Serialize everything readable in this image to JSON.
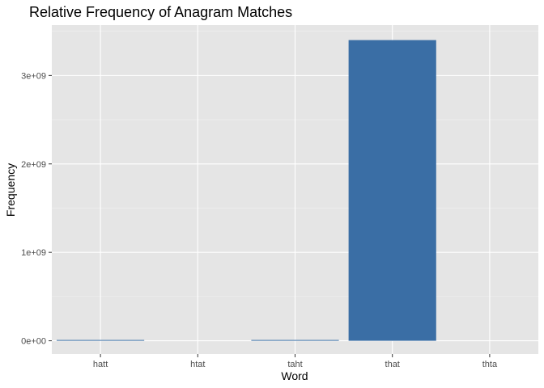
{
  "chart_data": {
    "type": "bar",
    "title": "Relative Frequency of Anagram Matches",
    "xlabel": "Word",
    "ylabel": "Frequency",
    "categories": [
      "hatt",
      "htat",
      "taht",
      "that",
      "thta"
    ],
    "values": [
      5000000,
      0,
      5000000,
      3400000000,
      0
    ],
    "ylim": [
      -150000000,
      3570000000
    ],
    "yticks": [
      0,
      1000000000,
      2000000000,
      3000000000
    ],
    "ytick_labels": [
      "0e+00",
      "1e+09",
      "2e+09",
      "3e+09"
    ],
    "grid": true,
    "legend": "none",
    "colors": {
      "bar": "#3a6ea5",
      "panel": "#e5e5e5",
      "grid_major": "#ffffff",
      "grid_minor": "#f2f2f2",
      "tick": "#4d4d4d",
      "text": "#000000"
    }
  }
}
